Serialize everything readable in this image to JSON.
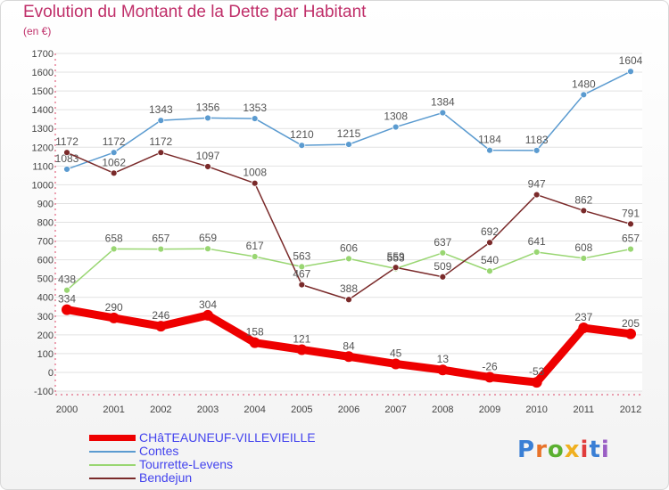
{
  "header": {
    "title": "Evolution du Montant de la Dette par Habitant",
    "subtitle": "(en €)"
  },
  "logo": {
    "text": "Proxiti",
    "letter_colors": [
      "#3a7fd5",
      "#e8732a",
      "#5bb030",
      "#f0b020",
      "#e03c3c",
      "#3a7fd5",
      "#9a5ec4"
    ]
  },
  "chart_data": {
    "type": "line",
    "x": [
      2000,
      2001,
      2002,
      2003,
      2004,
      2005,
      2006,
      2007,
      2008,
      2009,
      2010,
      2011,
      2012
    ],
    "ylim": [
      -100,
      1700
    ],
    "yticks": [
      -100,
      0,
      100,
      200,
      300,
      400,
      500,
      600,
      700,
      800,
      900,
      1000,
      1100,
      1200,
      1300,
      1400,
      1500,
      1600,
      1700
    ],
    "grid": "horizontal",
    "legend": "bottom-left",
    "series": [
      {
        "name": "CHâTEAUNEUF-VILLEVIEILLE",
        "color": "#ee0000",
        "legend_text_color": "#4444ee",
        "emphasis": true,
        "values": [
          334,
          290,
          246,
          304,
          158,
          121,
          84,
          45,
          13,
          -26,
          -53,
          237,
          205
        ]
      },
      {
        "name": "Contes",
        "color": "#5b9bd0",
        "legend_text_color": "#4444ee",
        "values": [
          1083,
          1172,
          1343,
          1356,
          1353,
          1210,
          1215,
          1308,
          1384,
          1184,
          1183,
          1480,
          1604
        ]
      },
      {
        "name": "Tourrette-Levens",
        "color": "#99d672",
        "legend_text_color": "#4444ee",
        "values": [
          438,
          658,
          657,
          659,
          617,
          563,
          606,
          553,
          637,
          540,
          641,
          608,
          657
        ]
      },
      {
        "name": "Bendejun",
        "color": "#7a2a2a",
        "legend_text_color": "#4444ee",
        "values": [
          1172,
          1062,
          1172,
          1097,
          1008,
          467,
          388,
          559,
          509,
          692,
          947,
          862,
          791
        ]
      }
    ]
  }
}
